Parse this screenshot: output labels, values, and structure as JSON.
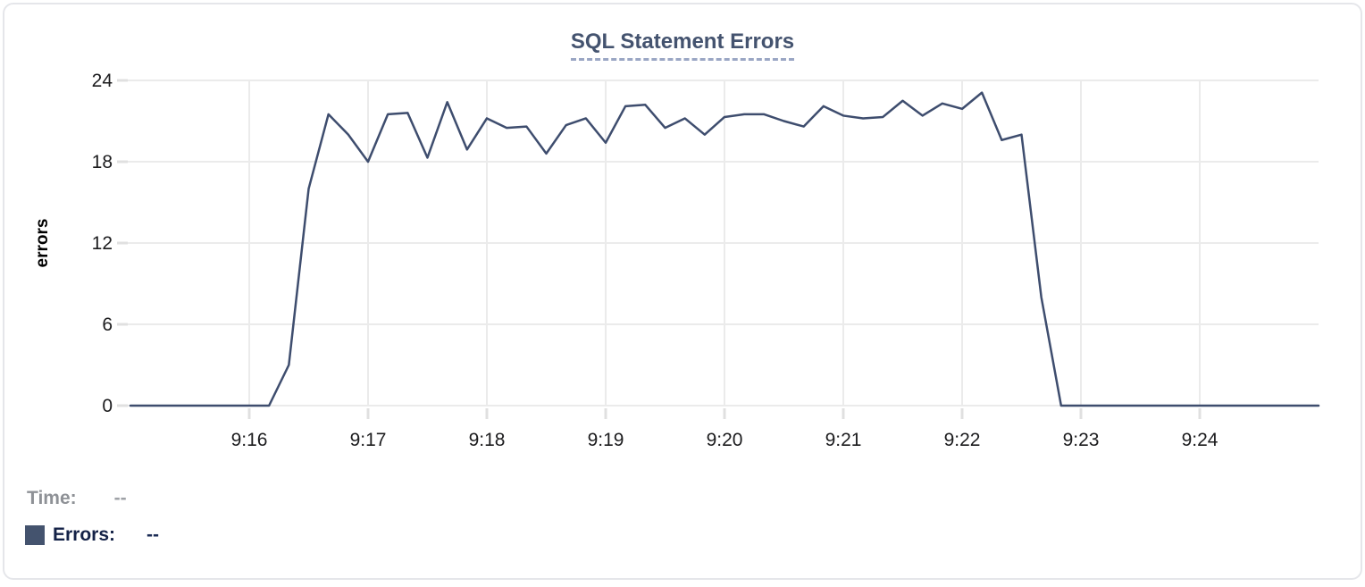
{
  "chart": {
    "title": "SQL Statement Errors"
  },
  "readout": {
    "time_label": "Time:",
    "time_value": "--",
    "errors_label": "Errors:",
    "errors_value": "--"
  },
  "colors": {
    "line": "#3E4D6E",
    "grid": "#EBEBEB",
    "tick_mark": "#E0E0E0",
    "tick_text": "#1C1C1E",
    "axis_title_text": "#000000",
    "title_text": "#44536F",
    "title_underline": "#9AA6C4",
    "swatch": "#44536E",
    "card_border": "#E5E6EA"
  },
  "chart_data": {
    "type": "line",
    "title": "SQL Statement Errors",
    "xlabel": "",
    "ylabel": "errors",
    "ylim": [
      0,
      24
    ],
    "y_ticks": [
      0,
      6,
      12,
      18,
      24
    ],
    "x_ticks": [
      "9:16",
      "9:17",
      "9:18",
      "9:19",
      "9:20",
      "9:21",
      "9:22",
      "9:23",
      "9:24"
    ],
    "x_start": "9:15:00",
    "x_end": "9:25:00",
    "sample_interval_seconds": 10,
    "grid": true,
    "legend_position": "bottom-left",
    "series": [
      {
        "name": "Errors",
        "color": "#3E4D6E",
        "times": [
          "9:15:00",
          "9:15:10",
          "9:15:20",
          "9:15:30",
          "9:15:40",
          "9:15:50",
          "9:16:00",
          "9:16:10",
          "9:16:20",
          "9:16:30",
          "9:16:40",
          "9:16:50",
          "9:17:00",
          "9:17:10",
          "9:17:20",
          "9:17:30",
          "9:17:40",
          "9:17:50",
          "9:18:00",
          "9:18:10",
          "9:18:20",
          "9:18:30",
          "9:18:40",
          "9:18:50",
          "9:19:00",
          "9:19:10",
          "9:19:20",
          "9:19:30",
          "9:19:40",
          "9:19:50",
          "9:20:00",
          "9:20:10",
          "9:20:20",
          "9:20:30",
          "9:20:40",
          "9:20:50",
          "9:21:00",
          "9:21:10",
          "9:21:20",
          "9:21:30",
          "9:21:40",
          "9:21:50",
          "9:22:00",
          "9:22:10",
          "9:22:20",
          "9:22:30",
          "9:22:40",
          "9:22:50",
          "9:23:00",
          "9:23:10",
          "9:23:20",
          "9:23:30",
          "9:23:40",
          "9:23:50",
          "9:24:00",
          "9:24:10",
          "9:24:20",
          "9:24:30",
          "9:24:40",
          "9:24:50",
          "9:25:00"
        ],
        "values": [
          0,
          0,
          0,
          0,
          0,
          0,
          0,
          0,
          3,
          16,
          21.5,
          20,
          18,
          21.5,
          21.6,
          18.3,
          22.4,
          18.9,
          21.2,
          20.5,
          20.6,
          18.6,
          20.7,
          21.2,
          19.4,
          22.1,
          22.2,
          20.5,
          21.2,
          20,
          21.3,
          21.5,
          21.5,
          21,
          20.6,
          22.1,
          21.4,
          21.2,
          21.3,
          22.5,
          21.4,
          22.3,
          21.9,
          23.1,
          19.6,
          20,
          8,
          0,
          0,
          0,
          0,
          0,
          0,
          0,
          0,
          0,
          0,
          0,
          0,
          0,
          0
        ]
      }
    ]
  }
}
